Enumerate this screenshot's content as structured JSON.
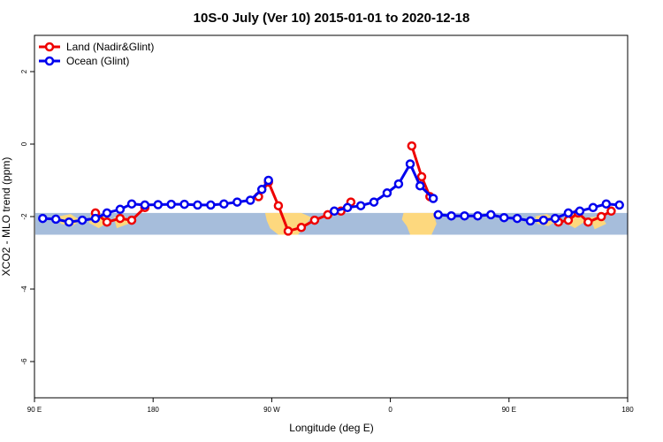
{
  "chart_data": {
    "type": "line",
    "title": "10S-0 July (Ver 10)   2015-01-01 to 2020-12-18",
    "xlabel": "Longitude (deg E)",
    "ylabel": "XCO2 - MLO trend (ppm)",
    "xlim": [
      90,
      450
    ],
    "ylim": [
      -7,
      3
    ],
    "x_ticks": [
      {
        "value": 90,
        "label": "90 E"
      },
      {
        "value": 162,
        "label": "180"
      },
      {
        "value": 234,
        "label": "90 W"
      },
      {
        "value": 306,
        "label": "0"
      },
      {
        "value": 378,
        "label": "90 E"
      },
      {
        "value": 450,
        "label": "180"
      }
    ],
    "y_ticks": [
      {
        "value": 2,
        "label": "2"
      },
      {
        "value": 0,
        "label": "0"
      },
      {
        "value": -2,
        "label": "-2"
      },
      {
        "value": -4,
        "label": "-4"
      },
      {
        "value": -6,
        "label": "-6"
      }
    ],
    "grid": false,
    "legend_position": "top-left",
    "map_band": {
      "lat_range": "10S-0",
      "y_range": [
        -1.9,
        -2.5
      ],
      "ocean_color": "#a6bddb",
      "land_color": "#fdd87e"
    },
    "series": [
      {
        "name": "Land (Nadir&Glint)",
        "color": "#ee0000",
        "segments": [
          {
            "x": [
              127,
              134,
              142,
              149,
              157
            ],
            "y": [
              -1.9,
              -2.15,
              -2.05,
              -2.1,
              -1.75
            ]
          },
          {
            "x": [
              226,
              232,
              238,
              244,
              252,
              260,
              268,
              276,
              282
            ],
            "y": [
              -1.45,
              -1.05,
              -1.7,
              -2.4,
              -2.3,
              -2.1,
              -1.95,
              -1.85,
              -1.6
            ]
          },
          {
            "x": [
              319,
              325,
              330
            ],
            "y": [
              -0.05,
              -0.9,
              -1.45
            ]
          },
          {
            "x": [
              408,
              414,
              420,
              426,
              434,
              440
            ],
            "y": [
              -2.15,
              -2.1,
              -1.9,
              -2.15,
              -2.0,
              -1.85
            ]
          }
        ]
      },
      {
        "name": "Ocean (Glint)",
        "color": "#0000ee",
        "segments": [
          {
            "x": [
              95,
              103,
              111,
              119,
              127,
              134,
              142,
              149,
              157,
              165,
              173,
              181,
              189,
              197,
              205,
              213,
              221,
              228,
              232
            ],
            "y": [
              -2.05,
              -2.07,
              -2.15,
              -2.1,
              -2.05,
              -1.9,
              -1.8,
              -1.65,
              -1.68,
              -1.67,
              -1.66,
              -1.66,
              -1.68,
              -1.68,
              -1.65,
              -1.6,
              -1.55,
              -1.25,
              -1.0
            ]
          },
          {
            "x": [
              272,
              280,
              288,
              296,
              304,
              311,
              318,
              324,
              332
            ],
            "y": [
              -1.85,
              -1.75,
              -1.7,
              -1.6,
              -1.35,
              -1.1,
              -0.55,
              -1.15,
              -1.5
            ]
          },
          {
            "x": [
              335,
              343,
              351,
              359,
              367,
              375,
              383,
              391,
              399,
              406,
              414,
              421,
              429,
              437,
              445
            ],
            "y": [
              -1.95,
              -1.98,
              -1.98,
              -1.98,
              -1.95,
              -2.03,
              -2.05,
              -2.12,
              -2.1,
              -2.05,
              -1.9,
              -1.85,
              -1.75,
              -1.65,
              -1.68
            ]
          }
        ]
      }
    ]
  }
}
